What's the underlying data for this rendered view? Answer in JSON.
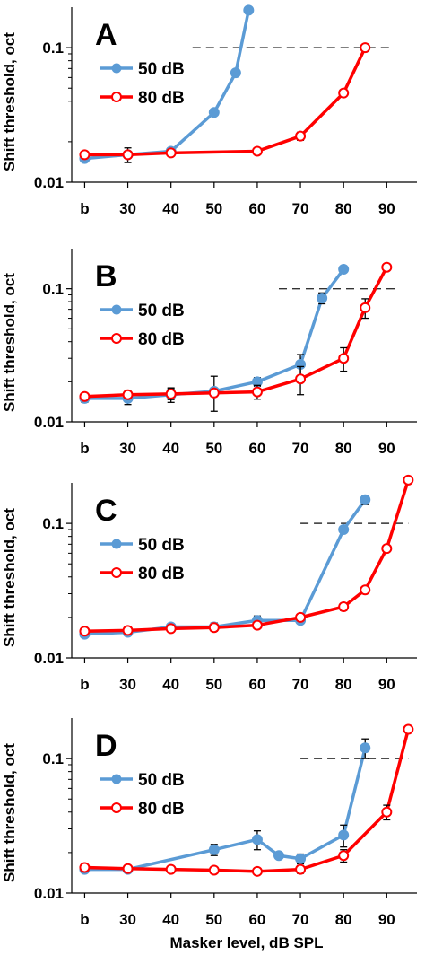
{
  "chart_data": [
    {
      "type": "line",
      "panel_label": "A",
      "ylabel": "Shift threshold, oct",
      "xlabel": "",
      "y_scale": "log",
      "ylim": [
        0.01,
        0.2
      ],
      "xlim": [
        17,
        97
      ],
      "x_ticks": [
        20,
        30,
        40,
        50,
        60,
        70,
        80,
        90
      ],
      "x_tick_labels": [
        "b",
        "30",
        "40",
        "50",
        "60",
        "70",
        "80",
        "90"
      ],
      "y_ticks": [
        0.01,
        0.1
      ],
      "y_tick_labels": [
        "0.01",
        "0.1"
      ],
      "reference_line": {
        "y": 0.1,
        "x_start": 45,
        "x_end": 91
      },
      "legend_position": "left",
      "series": [
        {
          "name": "50 dB",
          "color": "#5b9bd5",
          "marker": "filled-circle",
          "x": [
            20,
            30,
            40,
            50,
            55,
            58
          ],
          "y": [
            0.015,
            0.016,
            0.017,
            0.033,
            0.065,
            0.19
          ],
          "err": [
            0,
            0.002,
            0.001,
            0,
            0,
            0
          ]
        },
        {
          "name": "80 dB",
          "color": "#ff0000",
          "marker": "open-circle",
          "x": [
            20,
            30,
            40,
            60,
            70,
            80,
            85
          ],
          "y": [
            0.016,
            0.016,
            0.0165,
            0.017,
            0.022,
            0.046,
            0.1
          ],
          "err": [
            0,
            0,
            0,
            0,
            0.0015,
            0,
            0
          ]
        }
      ]
    },
    {
      "type": "line",
      "panel_label": "B",
      "ylabel": "Shift threshold, oct",
      "xlabel": "",
      "y_scale": "log",
      "ylim": [
        0.01,
        0.2
      ],
      "xlim": [
        17,
        97
      ],
      "x_ticks": [
        20,
        30,
        40,
        50,
        60,
        70,
        80,
        90
      ],
      "x_tick_labels": [
        "b",
        "30",
        "40",
        "50",
        "60",
        "70",
        "80",
        "90"
      ],
      "y_ticks": [
        0.01,
        0.1
      ],
      "y_tick_labels": [
        "0.01",
        "0.1"
      ],
      "reference_line": {
        "y": 0.1,
        "x_start": 65,
        "x_end": 93
      },
      "legend_position": "left",
      "series": [
        {
          "name": "50 dB",
          "color": "#5b9bd5",
          "marker": "filled-circle",
          "x": [
            20,
            30,
            40,
            50,
            60,
            70,
            75,
            80
          ],
          "y": [
            0.015,
            0.015,
            0.016,
            0.017,
            0.02,
            0.027,
            0.085,
            0.14
          ],
          "err": [
            0.001,
            0.0015,
            0.002,
            0.005,
            0.0015,
            0.005,
            0.008,
            0
          ]
        },
        {
          "name": "80 dB",
          "color": "#ff0000",
          "marker": "open-circle",
          "x": [
            20,
            30,
            40,
            50,
            60,
            70,
            80,
            85,
            90
          ],
          "y": [
            0.0155,
            0.016,
            0.0162,
            0.0165,
            0.0168,
            0.021,
            0.03,
            0.072,
            0.145
          ],
          "err": [
            0,
            0.001,
            0.0015,
            0.001,
            0.002,
            0.005,
            0.006,
            0.012,
            0
          ]
        }
      ]
    },
    {
      "type": "line",
      "panel_label": "C",
      "ylabel": "Shift threshold, oct",
      "xlabel": "",
      "y_scale": "log",
      "ylim": [
        0.01,
        0.2
      ],
      "xlim": [
        17,
        97
      ],
      "x_ticks": [
        20,
        30,
        40,
        50,
        60,
        70,
        80,
        90
      ],
      "x_tick_labels": [
        "b",
        "30",
        "40",
        "50",
        "60",
        "70",
        "80",
        "90"
      ],
      "y_ticks": [
        0.01,
        0.1
      ],
      "y_tick_labels": [
        "0.01",
        "0.1"
      ],
      "reference_line": {
        "y": 0.1,
        "x_start": 70,
        "x_end": 95
      },
      "legend_position": "left",
      "series": [
        {
          "name": "50 dB",
          "color": "#5b9bd5",
          "marker": "filled-circle",
          "x": [
            20,
            30,
            40,
            50,
            60,
            70,
            80,
            85
          ],
          "y": [
            0.015,
            0.0155,
            0.017,
            0.017,
            0.019,
            0.019,
            0.09,
            0.15
          ],
          "err": [
            0,
            0.0008,
            0.0008,
            0.0012,
            0.0015,
            0.001,
            0,
            0.012
          ]
        },
        {
          "name": "80 dB",
          "color": "#ff0000",
          "marker": "open-circle",
          "x": [
            20,
            30,
            40,
            50,
            60,
            70,
            80,
            85,
            90,
            95
          ],
          "y": [
            0.0158,
            0.016,
            0.0165,
            0.0168,
            0.0175,
            0.02,
            0.024,
            0.032,
            0.065,
            0.21
          ],
          "err": [
            0,
            0,
            0,
            0,
            0,
            0,
            0.0015,
            0,
            0,
            0
          ]
        }
      ]
    },
    {
      "type": "line",
      "panel_label": "D",
      "ylabel": "Shift threshold, oct",
      "xlabel": "Masker level, dB SPL",
      "y_scale": "log",
      "ylim": [
        0.01,
        0.2
      ],
      "xlim": [
        17,
        97
      ],
      "x_ticks": [
        20,
        30,
        40,
        50,
        60,
        70,
        80,
        90
      ],
      "x_tick_labels": [
        "b",
        "30",
        "40",
        "50",
        "60",
        "70",
        "80",
        "90"
      ],
      "y_ticks": [
        0.01,
        0.1
      ],
      "y_tick_labels": [
        "0.01",
        "0.1"
      ],
      "reference_line": {
        "y": 0.1,
        "x_start": 70,
        "x_end": 95
      },
      "legend_position": "left",
      "series": [
        {
          "name": "50 dB",
          "color": "#5b9bd5",
          "marker": "filled-circle",
          "x": [
            20,
            30,
            50,
            60,
            65,
            70,
            80,
            85
          ],
          "y": [
            0.015,
            0.015,
            0.021,
            0.025,
            0.019,
            0.018,
            0.027,
            0.12
          ],
          "err": [
            0,
            0,
            0.002,
            0.004,
            0,
            0.0015,
            0.005,
            0.02
          ]
        },
        {
          "name": "80 dB",
          "color": "#ff0000",
          "marker": "open-circle",
          "x": [
            20,
            30,
            40,
            50,
            60,
            70,
            80,
            90,
            95
          ],
          "y": [
            0.0155,
            0.0152,
            0.015,
            0.0148,
            0.0145,
            0.015,
            0.019,
            0.04,
            0.165
          ],
          "err": [
            0,
            0,
            0,
            0,
            0.0005,
            0.001,
            0.002,
            0.005,
            0
          ]
        }
      ]
    }
  ]
}
